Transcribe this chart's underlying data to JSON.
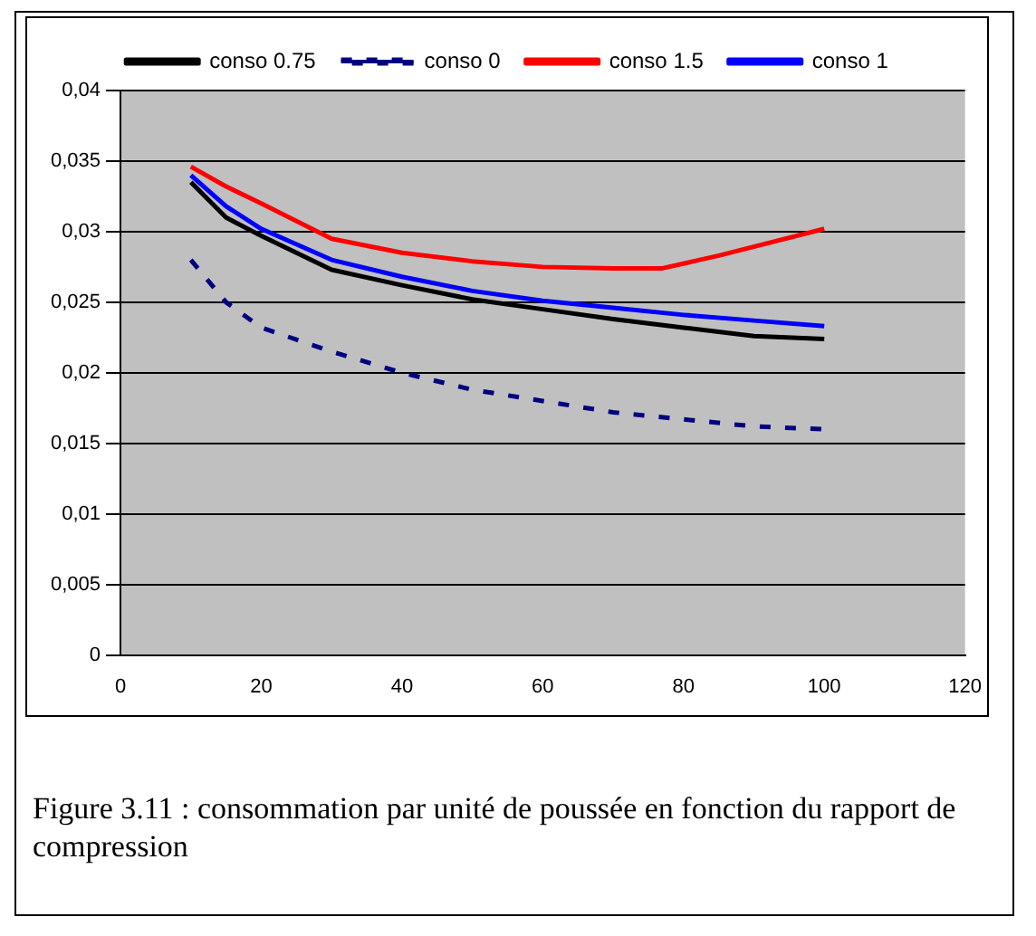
{
  "chart_data": {
    "type": "line",
    "xlim": [
      0,
      120
    ],
    "xticks": [
      0,
      20,
      40,
      60,
      80,
      100,
      120
    ],
    "ylim": [
      0,
      0.04
    ],
    "yticks": [
      {
        "value": 0,
        "label": "0"
      },
      {
        "value": 0.005,
        "label": "0,005"
      },
      {
        "value": 0.01,
        "label": "0,01"
      },
      {
        "value": 0.015,
        "label": "0,015"
      },
      {
        "value": 0.02,
        "label": "0,02"
      },
      {
        "value": 0.025,
        "label": "0,025"
      },
      {
        "value": 0.03,
        "label": "0,03"
      },
      {
        "value": 0.035,
        "label": "0,035"
      },
      {
        "value": 0.04,
        "label": "0,04"
      }
    ],
    "grid": "y",
    "legend": "top",
    "marker": "none",
    "series": [
      {
        "name": "conso 0.75",
        "color": "#000000",
        "line_style": "solid",
        "x": [
          10,
          15,
          20,
          30,
          40,
          50,
          60,
          70,
          80,
          90,
          100
        ],
        "values": [
          0.0335,
          0.031,
          0.0297,
          0.0273,
          0.0262,
          0.0252,
          0.0245,
          0.0238,
          0.0232,
          0.0226,
          0.0224
        ]
      },
      {
        "name": "conso 0",
        "color": "#000080",
        "line_style": "dashed",
        "x": [
          10,
          15,
          20,
          30,
          40,
          50,
          60,
          70,
          80,
          90,
          100
        ],
        "values": [
          0.028,
          0.025,
          0.0232,
          0.0215,
          0.02,
          0.0188,
          0.018,
          0.0172,
          0.0167,
          0.0162,
          0.016
        ]
      },
      {
        "name": "conso 1.5",
        "color": "#ff0000",
        "line_style": "solid",
        "x": [
          10,
          15,
          20,
          30,
          40,
          50,
          60,
          70,
          77,
          85,
          100
        ],
        "values": [
          0.0346,
          0.0332,
          0.032,
          0.0295,
          0.0285,
          0.0279,
          0.0275,
          0.0274,
          0.0274,
          0.0283,
          0.0302
        ]
      },
      {
        "name": "conso 1",
        "color": "#0000ff",
        "line_style": "solid",
        "x": [
          10,
          15,
          20,
          30,
          40,
          50,
          60,
          70,
          80,
          90,
          100
        ],
        "values": [
          0.034,
          0.0318,
          0.0302,
          0.028,
          0.0268,
          0.0258,
          0.0251,
          0.0246,
          0.0241,
          0.0237,
          0.0233
        ]
      }
    ],
    "annotations": [
      "Figure 3.11 : consommation par unité de poussée en fonction du rapport de compression"
    ]
  }
}
